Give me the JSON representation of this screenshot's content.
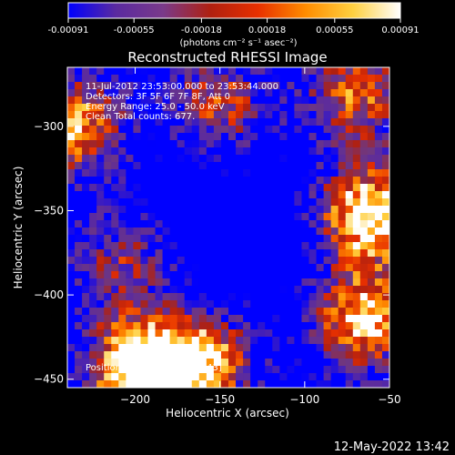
{
  "chart_data": {
    "type": "heatmap",
    "title": "Reconstructed RHESSI Image",
    "xlabel": "Heliocentric X (arcsec)",
    "ylabel": "Heliocentric Y (arcsec)",
    "xlim": [
      -240,
      -50
    ],
    "ylim": [
      -455,
      -265
    ],
    "x_ticks": [
      -200,
      -150,
      -100,
      -50
    ],
    "y_ticks": [
      -300,
      -350,
      -400,
      -450
    ],
    "x_tick_labels": [
      "−200",
      "−150",
      "−100",
      "−50"
    ],
    "y_tick_labels": [
      "−300",
      "−350",
      "−400",
      "−450"
    ],
    "colorbar": {
      "range": [
        -0.00091,
        0.00091
      ],
      "ticks": [
        -0.00091,
        -0.00055,
        -0.00018,
        0.00018,
        0.00055,
        0.00091
      ],
      "tick_labels": [
        "-0.00091",
        "-0.00055",
        "-0.00018",
        "0.00018",
        "0.00055",
        "0.00091"
      ],
      "unit_label": "(photons cm⁻² s⁻¹ asec⁻²)",
      "colors": [
        "#0000ff",
        "#5a2aa0",
        "#7a3a8a",
        "#b02010",
        "#e83000",
        "#ff8c00",
        "#ffd040",
        "#ffffff"
      ]
    },
    "info_lines": [
      "11-Jul-2012 23:53:00.000 to 23:53:44.000",
      "Detectors: 3F 5F 6F 7F 8F, Att 0",
      "Energy Range: 25.0 - 50.0 keV",
      "Clean    Total counts: 677."
    ],
    "peak_annotation": "Position of Peak = [-200,-443]",
    "peak": {
      "x": -200,
      "y": -443
    },
    "bright_regions": [
      {
        "x": -62,
        "y": -352,
        "level": 1.0
      },
      {
        "x": -65,
        "y": -415,
        "level": 0.9
      },
      {
        "x": -160,
        "y": -440,
        "level": 0.85
      },
      {
        "x": -200,
        "y": -443,
        "level": 1.0
      },
      {
        "x": -235,
        "y": -300,
        "level": 0.8
      },
      {
        "x": -150,
        "y": -285,
        "level": 0.6
      },
      {
        "x": -70,
        "y": -280,
        "level": 0.7
      },
      {
        "x": -210,
        "y": -380,
        "level": 0.5
      }
    ]
  },
  "footer": {
    "timestamp": "12-May-2022 13:42"
  }
}
